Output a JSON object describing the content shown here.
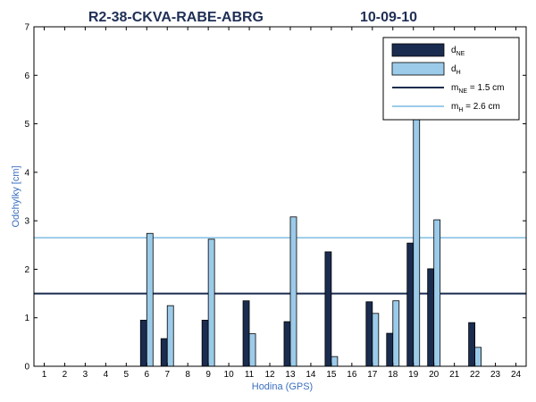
{
  "chart_data": {
    "type": "bar",
    "title_left": "R2-38-CKVA-RABE-ABRG",
    "title_right": "10-09-10",
    "xlabel": "Hodina (GPS)",
    "ylabel": "Odchylky [cm]",
    "xlim": [
      0.5,
      24.5
    ],
    "ylim": [
      0,
      7
    ],
    "x": [
      1,
      2,
      3,
      4,
      5,
      6,
      7,
      8,
      9,
      10,
      11,
      12,
      13,
      14,
      15,
      16,
      17,
      18,
      19,
      20,
      21,
      22,
      23,
      24
    ],
    "yticks": [
      0,
      1,
      2,
      3,
      4,
      5,
      6,
      7
    ],
    "series": [
      {
        "name": "d_NE",
        "color": "#1a2c4f",
        "values": [
          null,
          null,
          null,
          null,
          null,
          0.95,
          0.57,
          null,
          0.95,
          null,
          1.35,
          null,
          0.92,
          null,
          2.36,
          null,
          1.33,
          0.68,
          2.54,
          2.01,
          null,
          0.9,
          null,
          null
        ]
      },
      {
        "name": "d_H",
        "color": "#9ccbea",
        "values": [
          null,
          null,
          null,
          null,
          null,
          2.74,
          1.25,
          null,
          2.62,
          null,
          0.67,
          null,
          3.08,
          null,
          0.2,
          null,
          1.09,
          1.35,
          5.35,
          3.02,
          null,
          0.39,
          null,
          null
        ]
      }
    ],
    "reference_lines": [
      {
        "name_base": "m",
        "name_sub": "NE",
        "name_rest": " = 1.5 cm",
        "value": 1.5,
        "color": "#1a2c4f"
      },
      {
        "name_base": "m",
        "name_sub": "H",
        "name_rest": "  = 2.6 cm",
        "value": 2.65,
        "color": "#9ccbea"
      }
    ],
    "legend": [
      {
        "kind": "bar",
        "base": "d",
        "sub": "NE",
        "rest": "",
        "color": "#1a2c4f"
      },
      {
        "kind": "bar",
        "base": "d",
        "sub": "H",
        "rest": "",
        "color": "#9ccbea"
      },
      {
        "kind": "line",
        "base": "m",
        "sub": "NE",
        "rest": " = 1.5 cm",
        "color": "#1a2c4f"
      },
      {
        "kind": "line",
        "base": "m",
        "sub": "H",
        "rest": "  = 2.6 cm",
        "color": "#9ccbea"
      }
    ],
    "legend_position": "top-right",
    "grid": false
  }
}
